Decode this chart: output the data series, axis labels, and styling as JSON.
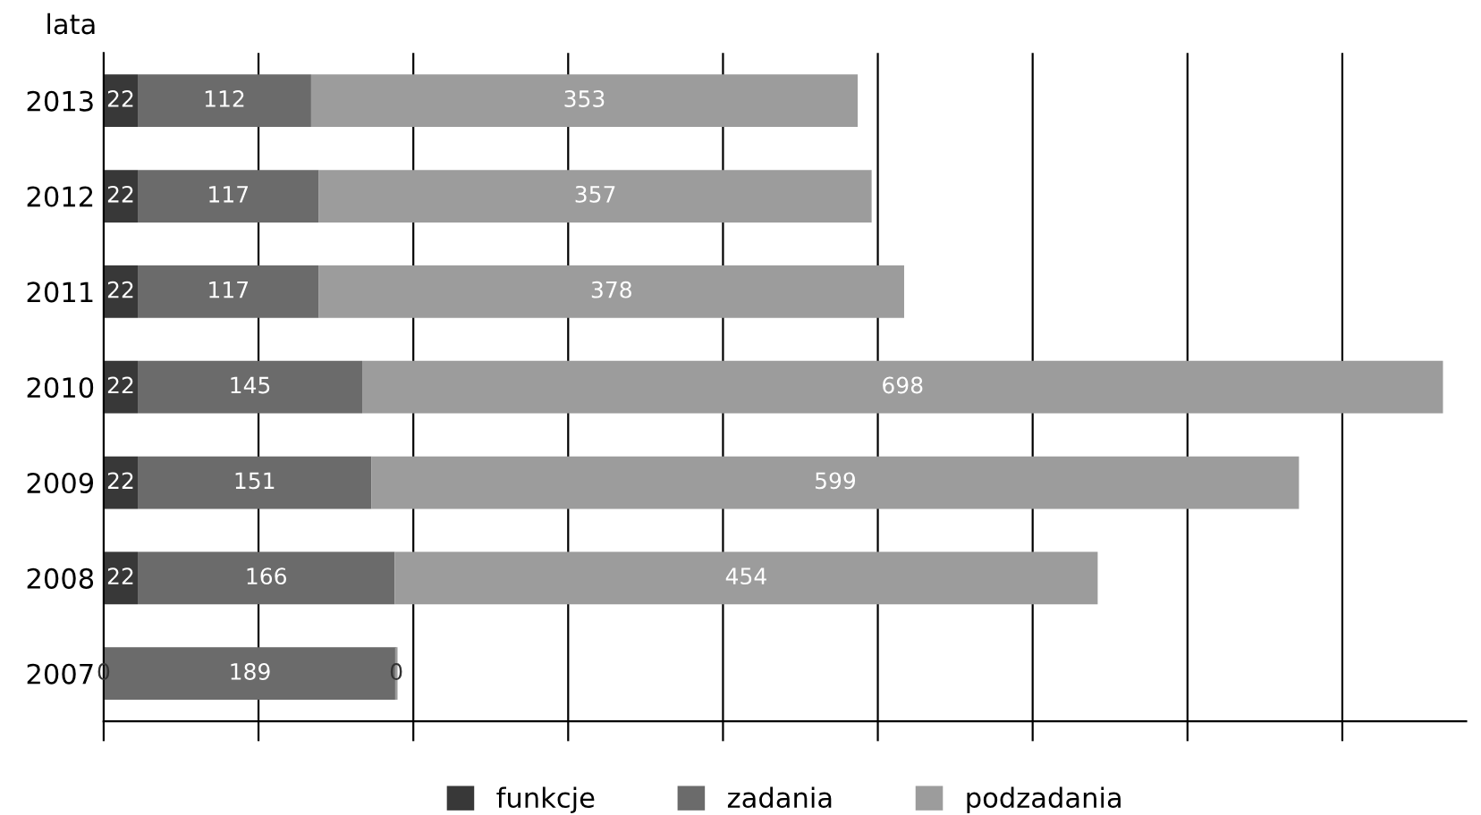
{
  "chart_data": {
    "type": "bar",
    "orientation": "horizontal",
    "stacked": true,
    "ylabel": "lata",
    "categories": [
      "2013",
      "2012",
      "2011",
      "2010",
      "2009",
      "2008",
      "2007"
    ],
    "series": [
      {
        "name": "funkcje",
        "color": "#383838",
        "values": [
          22,
          22,
          22,
          22,
          22,
          22,
          0
        ]
      },
      {
        "name": "zadania",
        "color": "#6b6b6b",
        "values": [
          112,
          117,
          117,
          145,
          151,
          166,
          189
        ]
      },
      {
        "name": "podzadania",
        "color": "#9c9c9c",
        "values": [
          353,
          357,
          378,
          698,
          599,
          454,
          0
        ]
      }
    ],
    "xlim": [
      0,
      880
    ],
    "xticks": [
      {
        "value": 0,
        "label": null
      },
      {
        "value": 100,
        "label": null
      },
      {
        "value": 200,
        "label": null
      },
      {
        "value": 300,
        "label": null
      },
      {
        "value": 400,
        "label": null
      },
      {
        "value": 500,
        "label": null
      },
      {
        "value": 600,
        "label": null
      },
      {
        "value": 700,
        "label": null
      },
      {
        "value": 800,
        "label": null
      }
    ],
    "grid": "x",
    "data_labels": true,
    "legend": "bottom",
    "tick_labels": "y"
  }
}
